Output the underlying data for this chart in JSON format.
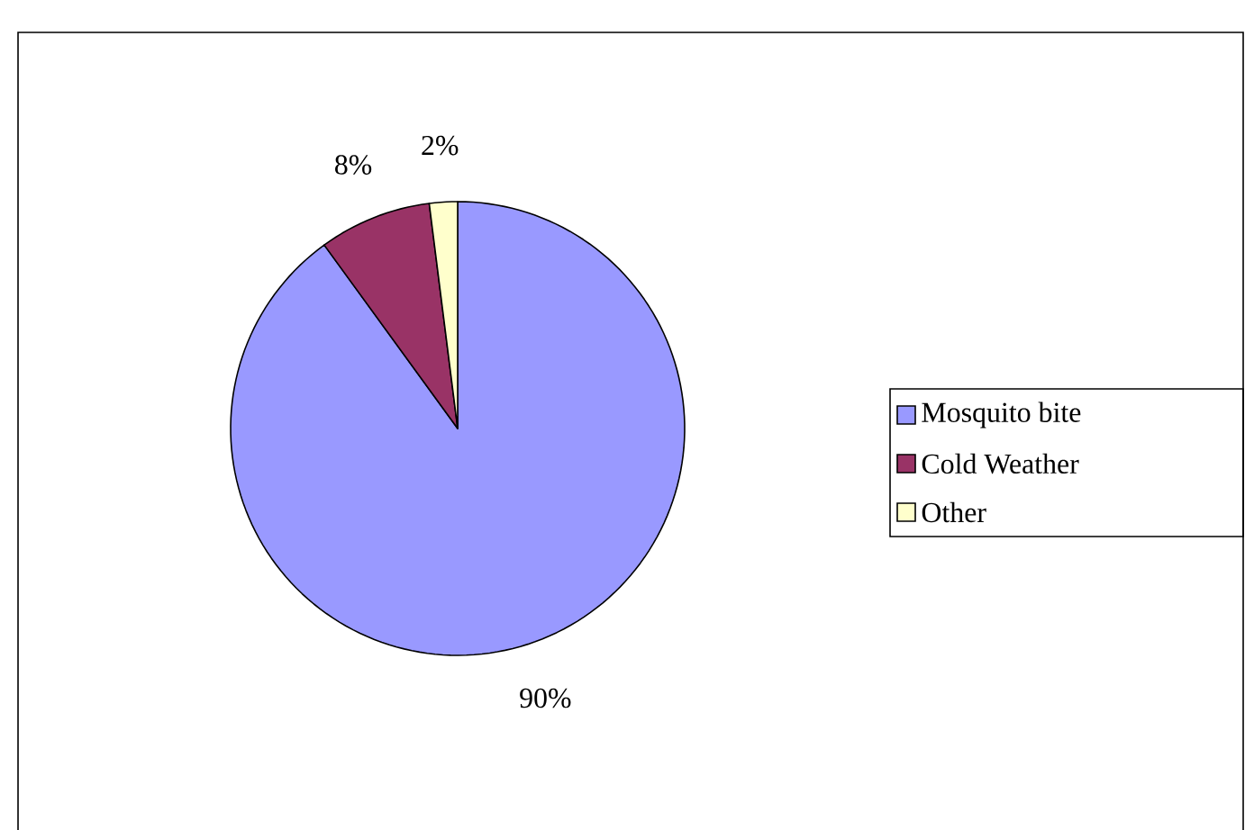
{
  "chart_data": {
    "type": "pie",
    "categories": [
      "Mosquito bite",
      "Cold Weather",
      "Other"
    ],
    "values": [
      90,
      8,
      2
    ],
    "value_labels": [
      "90%",
      "8%",
      "2%"
    ],
    "colors": [
      "#9999ff",
      "#993366",
      "#ffffcc"
    ],
    "legend": "right"
  }
}
